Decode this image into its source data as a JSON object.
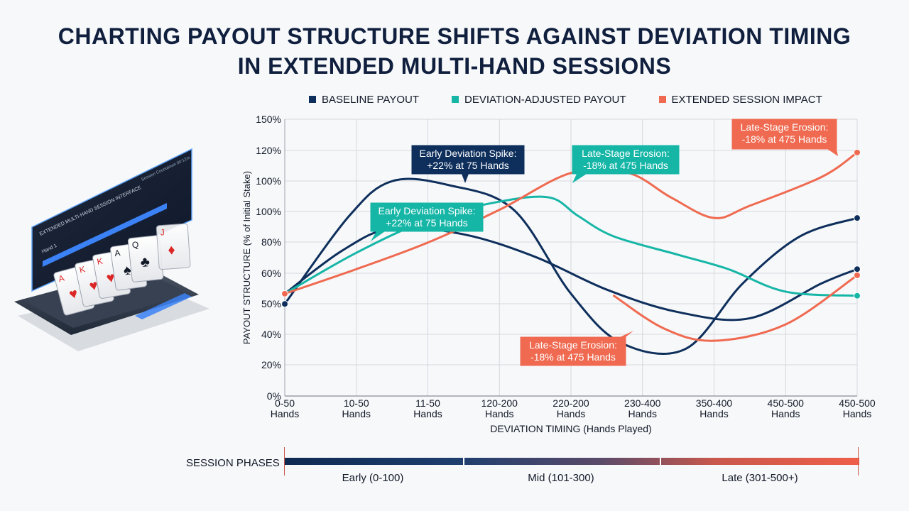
{
  "title_line1": "CHARTING PAYOUT STRUCTURE SHIFTS AGAINST DEVIATION TIMING",
  "title_line2": "IN EXTENDED MULTI-HAND SESSIONS",
  "colors": {
    "baseline": "#0e2f5c",
    "deviation": "#16b6a7",
    "extended": "#ef6a50",
    "title": "#0f1f3d"
  },
  "chart_data": {
    "type": "line",
    "xlabel": "DEVIATION TIMING (Hands Played)",
    "ylabel": "PAYOUT STRUCTURE (% of Initial Stake)",
    "y_tick_labels": [
      "0%",
      "20%",
      "40%",
      "50%",
      "60%",
      "80%",
      "100%",
      "100%",
      "120%",
      "150%"
    ],
    "x_tick_labels": [
      [
        "0-50",
        "Hands"
      ],
      [
        "10-50",
        "Hands"
      ],
      [
        "11-50",
        "Hands"
      ],
      [
        "120-200",
        "Hands"
      ],
      [
        "220-200",
        "Hands"
      ],
      [
        "230-400",
        "Hands"
      ],
      [
        "350-400",
        "Hands"
      ],
      [
        "450-500",
        "Hands"
      ],
      [
        "450-500",
        "Hands"
      ]
    ],
    "grid": true,
    "legend_position": "top",
    "series": [
      {
        "name": "BASELINE PAYOUT",
        "color_key": "baseline",
        "values": [
          [
            0,
            45
          ],
          [
            0.9,
            88
          ],
          [
            1.5,
            105
          ],
          [
            2.3,
            103
          ],
          [
            3.2,
            91
          ],
          [
            4.0,
            50
          ],
          [
            4.7,
            26
          ],
          [
            5.6,
            23
          ],
          [
            6.4,
            55
          ],
          [
            7.2,
            78
          ],
          [
            8.0,
            87
          ]
        ]
      },
      {
        "name": "BASELINE PAYOUT (lower path)",
        "color_key": "baseline",
        "values": [
          [
            0,
            50
          ],
          [
            0.8,
            71
          ],
          [
            1.5,
            82
          ],
          [
            2.5,
            79
          ],
          [
            3.5,
            68
          ],
          [
            4.5,
            52
          ],
          [
            5.5,
            41
          ],
          [
            6.5,
            38
          ],
          [
            7.5,
            55
          ],
          [
            8.0,
            62
          ]
        ]
      },
      {
        "name": "DEVIATION-ADJUSTED PAYOUT",
        "color_key": "deviation",
        "values": [
          [
            0,
            50
          ],
          [
            1.0,
            70
          ],
          [
            2.0,
            86
          ],
          [
            3.0,
            95
          ],
          [
            3.7,
            97
          ],
          [
            4.1,
            88
          ],
          [
            4.6,
            78
          ],
          [
            5.5,
            69
          ],
          [
            6.2,
            62
          ],
          [
            7.0,
            51
          ],
          [
            8.0,
            49
          ]
        ]
      },
      {
        "name": "EXTENDED SESSION IMPACT",
        "color_key": "extended",
        "values": [
          [
            0,
            50
          ],
          [
            1.0,
            62
          ],
          [
            2.0,
            75
          ],
          [
            3.0,
            91
          ],
          [
            4.0,
            109
          ],
          [
            4.8,
            109
          ],
          [
            5.4,
            97
          ],
          [
            6.0,
            87
          ],
          [
            6.5,
            93
          ],
          [
            7.5,
            107
          ],
          [
            8.0,
            119
          ]
        ]
      },
      {
        "name": "EXTENDED SESSION IMPACT (lower path)",
        "color_key": "extended",
        "values": [
          [
            4.6,
            49
          ],
          [
            5.3,
            33
          ],
          [
            6.0,
            27
          ],
          [
            7.0,
            35
          ],
          [
            8.0,
            59
          ]
        ]
      }
    ],
    "annotations": [
      {
        "text": [
          "Early Deviation Spike:",
          "+22% at 75 Hands"
        ],
        "style": "baseline"
      },
      {
        "text": [
          "Early Deviation Spike:",
          "+22% at 75 Hands"
        ],
        "style": "deviation"
      },
      {
        "text": [
          "Late-Stage Erosion:",
          "-18% at 475 Hands"
        ],
        "style": "deviation"
      },
      {
        "text": [
          "Late-Stage Erosion:",
          "-18% at 475 Hands"
        ],
        "style": "extended"
      },
      {
        "text": [
          "Late-Stage Erosion:",
          "-18% at 475 Hands"
        ],
        "style": "extended"
      }
    ]
  },
  "session_phases": {
    "label": "SESSION PHASES",
    "phases": [
      "Early (0-100)",
      "Mid (101-300)",
      "Late (301-500+)"
    ]
  },
  "illustration": {
    "screen_title": "EXTENDED MULTI-HAND SESSION INTERFACE",
    "screen_subtitle": "Session Countdown 00:12m",
    "hand_label": "Hand 1",
    "cards": [
      "A",
      "K",
      "K",
      "A",
      "Q",
      "J",
      "A",
      "Q"
    ]
  }
}
